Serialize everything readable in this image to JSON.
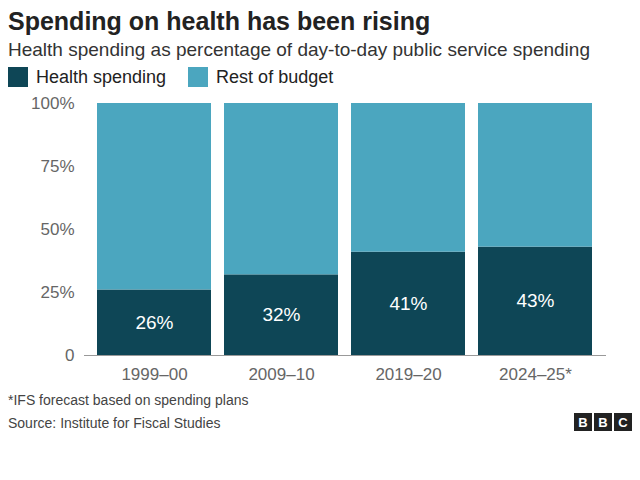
{
  "chart_data": {
    "type": "bar",
    "title": "Spending on health has been rising",
    "subtitle": "Health spending as percentage of day-to-day public service spending",
    "categories": [
      "1999–00",
      "2009–10",
      "2019–20",
      "2024–25*"
    ],
    "series": [
      {
        "name": "Health spending",
        "color": "#0e4656",
        "values": [
          26,
          32,
          41,
          43
        ],
        "value_labels": [
          "26%",
          "32%",
          "41%",
          "43%"
        ]
      },
      {
        "name": "Rest of budget",
        "color": "#4ba6bf",
        "values": [
          74,
          68,
          59,
          57
        ]
      }
    ],
    "stacked": true,
    "data_labels": true,
    "legend": "top-left",
    "ylim": [
      0,
      100
    ],
    "yticks": [
      0,
      {
        "value": 25,
        "label": "25%"
      },
      {
        "value": 50,
        "label": "50%"
      },
      {
        "value": 75,
        "label": "75%"
      },
      {
        "value": 100,
        "label": "100%"
      }
    ],
    "note": "*IFS forecast based on spending plans",
    "source": "Source: Institute for Fiscal Studies",
    "logo": "BBC"
  }
}
